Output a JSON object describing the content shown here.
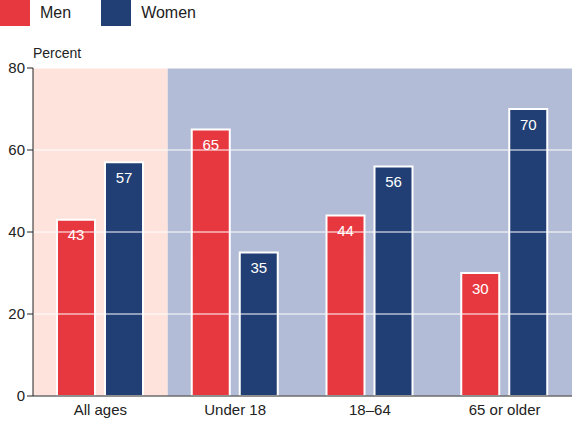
{
  "chart_data": {
    "type": "bar",
    "y_label": "Percent",
    "categories": [
      "All ages",
      "Under 18",
      "18–64",
      "65 or older"
    ],
    "series": [
      {
        "name": "Men",
        "color": "#e8383f",
        "values": [
          43,
          65,
          44,
          30
        ]
      },
      {
        "name": "Women",
        "color": "#213f74",
        "values": [
          57,
          35,
          56,
          70
        ]
      }
    ],
    "ylim": [
      0,
      80
    ],
    "yticks": [
      0,
      20,
      40,
      60,
      80
    ],
    "grid": true,
    "legend": "top-left",
    "data_labels": true
  }
}
